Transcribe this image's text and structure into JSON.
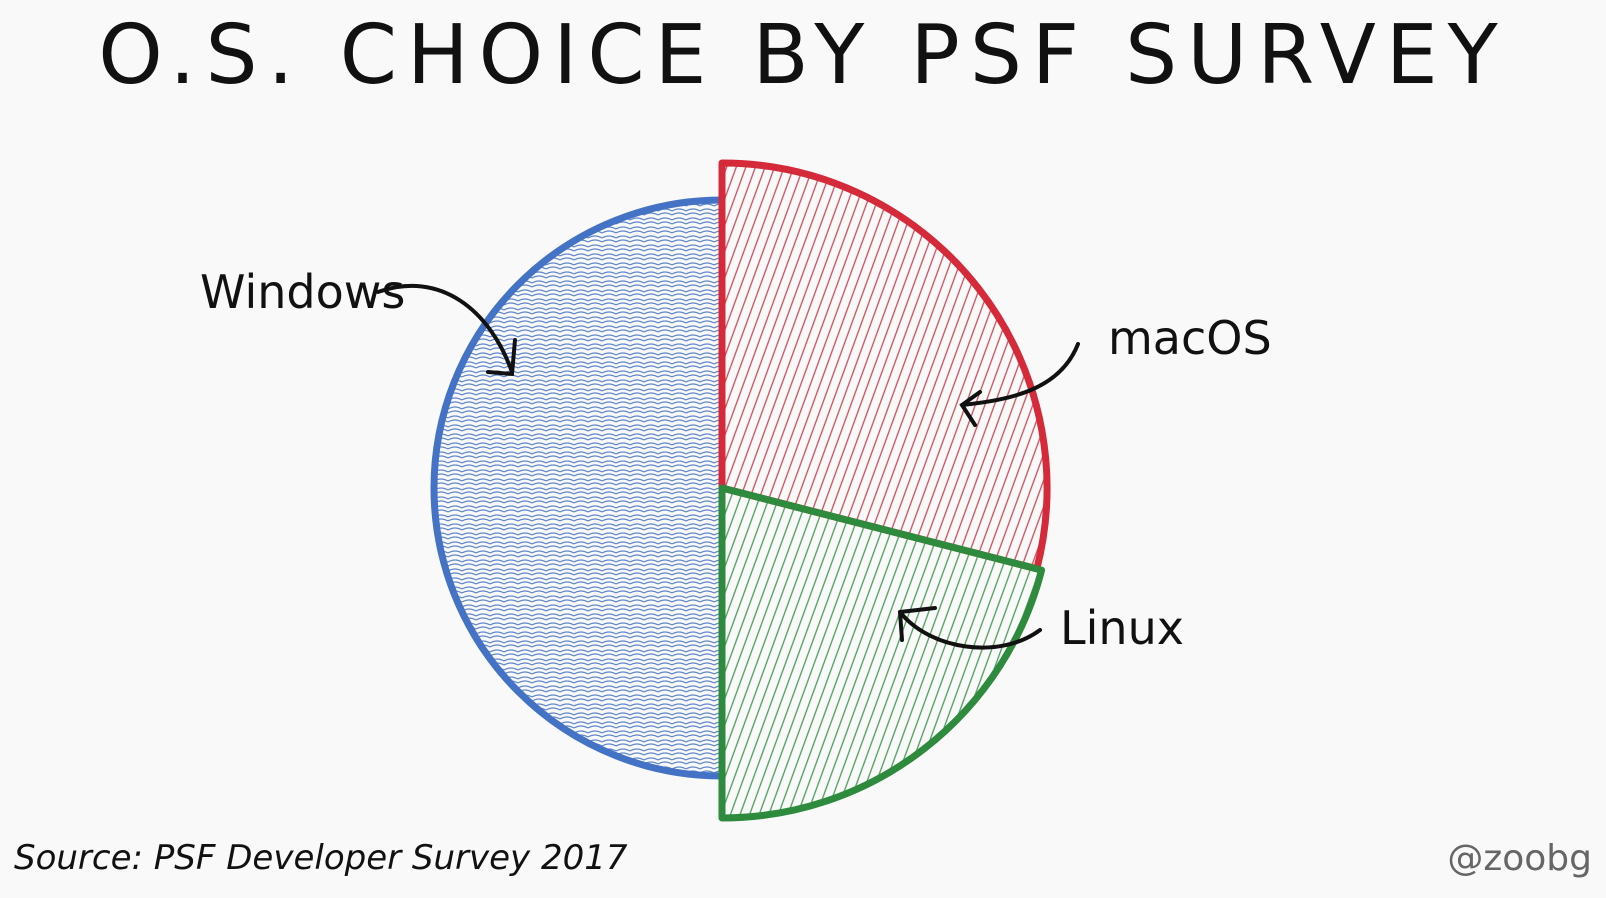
{
  "chart_data": {
    "type": "pie",
    "title": "O.S. CHOICE BY PSF SURVEY",
    "slices": [
      {
        "label": "Windows",
        "value": 50,
        "color": "#4472c4"
      },
      {
        "label": "Linux",
        "value": 29,
        "color": "#d42a3a"
      },
      {
        "label": "macOS",
        "value": 21,
        "color": "#2e8b3e"
      }
    ],
    "source": "Source: PSF Developer Survey 2017",
    "credit": "@zoobg"
  }
}
